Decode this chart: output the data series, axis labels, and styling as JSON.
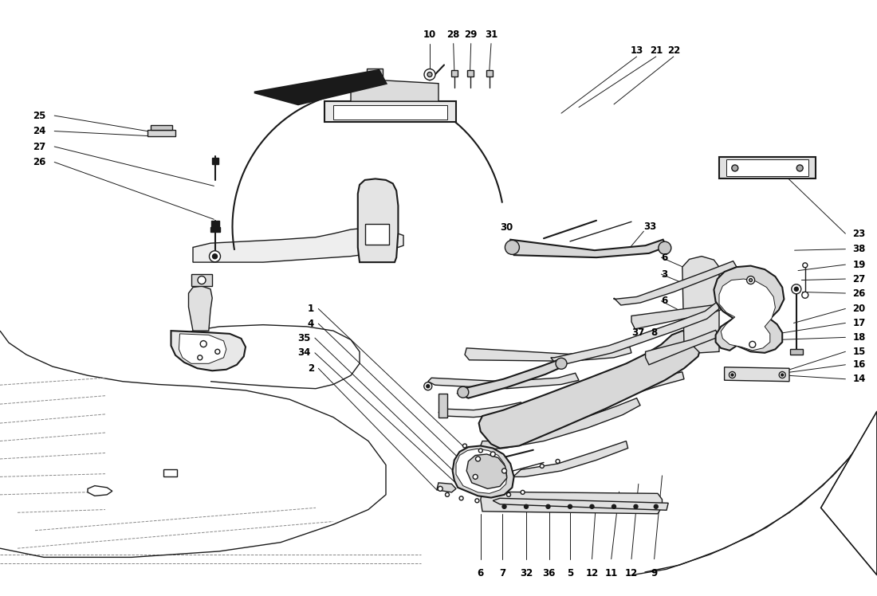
{
  "title": "",
  "bg_color": "#ffffff",
  "line_color": "#1a1a1a",
  "fig_width": 11.0,
  "fig_height": 7.48,
  "dpi": 100,
  "top_labels": [
    {
      "text": "6",
      "xf": 0.548,
      "yf": 0.962
    },
    {
      "text": "7",
      "xf": 0.573,
      "yf": 0.962
    },
    {
      "text": "32",
      "xf": 0.6,
      "yf": 0.962
    },
    {
      "text": "36",
      "xf": 0.626,
      "yf": 0.962
    },
    {
      "text": "5",
      "xf": 0.65,
      "yf": 0.962
    },
    {
      "text": "12",
      "xf": 0.675,
      "yf": 0.962
    },
    {
      "text": "11",
      "xf": 0.697,
      "yf": 0.962
    },
    {
      "text": "12",
      "xf": 0.72,
      "yf": 0.962
    },
    {
      "text": "9",
      "xf": 0.746,
      "yf": 0.962
    }
  ],
  "left_labels": [
    {
      "text": "2",
      "xf": 0.358,
      "yf": 0.618
    },
    {
      "text": "34",
      "xf": 0.354,
      "yf": 0.592
    },
    {
      "text": "35",
      "xf": 0.354,
      "yf": 0.567
    },
    {
      "text": "4",
      "xf": 0.358,
      "yf": 0.543
    },
    {
      "text": "1",
      "xf": 0.358,
      "yf": 0.518
    }
  ],
  "bottom_left_labels": [
    {
      "text": "26",
      "xf": 0.037,
      "yf": 0.272
    },
    {
      "text": "27",
      "xf": 0.037,
      "yf": 0.246
    },
    {
      "text": "24",
      "xf": 0.037,
      "yf": 0.22
    },
    {
      "text": "25",
      "xf": 0.037,
      "yf": 0.194
    }
  ],
  "bottom_labels": [
    {
      "text": "10",
      "xf": 0.49,
      "yf": 0.058
    },
    {
      "text": "28",
      "xf": 0.517,
      "yf": 0.058
    },
    {
      "text": "29",
      "xf": 0.537,
      "yf": 0.058
    },
    {
      "text": "31",
      "xf": 0.56,
      "yf": 0.058
    }
  ],
  "center_labels": [
    {
      "text": "30",
      "xf": 0.57,
      "yf": 0.382
    },
    {
      "text": "37",
      "xf": 0.72,
      "yf": 0.558
    },
    {
      "text": "8",
      "xf": 0.742,
      "yf": 0.558
    },
    {
      "text": "6",
      "xf": 0.754,
      "yf": 0.505
    },
    {
      "text": "3",
      "xf": 0.754,
      "yf": 0.46
    },
    {
      "text": "6",
      "xf": 0.754,
      "yf": 0.432
    },
    {
      "text": "33",
      "xf": 0.734,
      "yf": 0.38
    }
  ],
  "bottom_center_labels": [
    {
      "text": "13",
      "xf": 0.726,
      "yf": 0.085
    },
    {
      "text": "21",
      "xf": 0.748,
      "yf": 0.085
    },
    {
      "text": "22",
      "xf": 0.768,
      "yf": 0.085
    }
  ],
  "right_labels": [
    {
      "text": "14",
      "xf": 0.972,
      "yf": 0.636
    },
    {
      "text": "16",
      "xf": 0.972,
      "yf": 0.612
    },
    {
      "text": "15",
      "xf": 0.972,
      "yf": 0.59
    },
    {
      "text": "18",
      "xf": 0.972,
      "yf": 0.566
    },
    {
      "text": "17",
      "xf": 0.972,
      "yf": 0.542
    },
    {
      "text": "20",
      "xf": 0.972,
      "yf": 0.518
    },
    {
      "text": "26",
      "xf": 0.972,
      "yf": 0.492
    },
    {
      "text": "27",
      "xf": 0.972,
      "yf": 0.468
    },
    {
      "text": "19",
      "xf": 0.972,
      "yf": 0.444
    },
    {
      "text": "38",
      "xf": 0.972,
      "yf": 0.418
    },
    {
      "text": "23",
      "xf": 0.972,
      "yf": 0.392
    }
  ]
}
